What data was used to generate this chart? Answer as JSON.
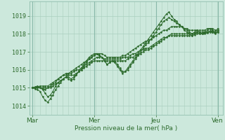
{
  "bg_color": "#cce8dc",
  "grid_v_color": "#aacfbf",
  "grid_h_color": "#aacfbf",
  "day_line_color": "#88b8a8",
  "line_color": "#2d6b2d",
  "marker_color": "#2d6b2d",
  "xlabel": "Pression niveau de la mer( hPa )",
  "xlabel_color": "#2d6b2d",
  "ylabel_color": "#2d6b2d",
  "tick_color": "#2d6b2d",
  "yticks": [
    1014,
    1015,
    1016,
    1017,
    1018,
    1019
  ],
  "ylim": [
    1013.5,
    1019.8
  ],
  "day_labels": [
    "Mar",
    "Mer",
    "Jeu",
    "Ven"
  ],
  "day_positions": [
    0,
    1,
    2,
    3
  ],
  "xlim": [
    -0.05,
    3.08
  ],
  "num_v_gridlines": 36,
  "lines": [
    {
      "x": [
        0.0,
        0.042,
        0.083,
        0.125,
        0.167,
        0.208,
        0.25,
        0.292,
        0.333,
        0.375,
        0.417,
        0.458,
        0.5,
        0.542,
        0.583,
        0.625,
        0.667,
        0.708,
        0.75,
        0.792,
        0.833,
        0.875,
        0.917,
        0.958,
        1.0,
        1.042,
        1.083,
        1.125,
        1.167,
        1.208,
        1.25,
        1.292,
        1.333,
        1.375,
        1.417,
        1.458,
        1.5,
        1.542,
        1.583,
        1.625,
        1.667,
        1.708,
        1.75,
        1.792,
        1.833,
        1.875,
        1.917,
        1.958,
        2.0,
        2.042,
        2.083,
        2.125,
        2.167,
        2.208,
        2.25,
        2.292,
        2.333,
        2.375,
        2.417,
        2.458,
        2.5,
        2.542,
        2.583,
        2.625,
        2.667,
        2.708,
        2.75,
        2.792,
        2.833,
        2.875,
        2.917,
        2.958,
        3.0
      ],
      "y": [
        1015.0,
        1015.05,
        1015.1,
        1015.0,
        1014.9,
        1014.7,
        1014.5,
        1014.6,
        1014.8,
        1015.1,
        1015.3,
        1015.4,
        1015.5,
        1015.6,
        1015.5,
        1015.4,
        1015.5,
        1015.7,
        1015.9,
        1016.1,
        1016.3,
        1016.5,
        1016.7,
        1016.8,
        1016.9,
        1016.9,
        1016.8,
        1016.7,
        1016.5,
        1016.3,
        1016.4,
        1016.5,
        1016.4,
        1016.2,
        1016.0,
        1015.8,
        1015.9,
        1016.1,
        1016.3,
        1016.5,
        1016.7,
        1016.9,
        1017.1,
        1017.3,
        1017.5,
        1017.7,
        1017.9,
        1018.1,
        1018.3,
        1018.5,
        1018.7,
        1018.9,
        1019.1,
        1019.2,
        1019.0,
        1018.8,
        1018.7,
        1018.5,
        1018.4,
        1018.3,
        1018.2,
        1018.1,
        1018.0,
        1018.1,
        1018.2,
        1018.1,
        1018.0,
        1018.1,
        1018.2,
        1018.3,
        1018.2,
        1018.1,
        1018.3
      ]
    },
    {
      "x": [
        0.0,
        0.042,
        0.083,
        0.125,
        0.167,
        0.208,
        0.25,
        0.292,
        0.333,
        0.375,
        0.417,
        0.458,
        0.5,
        0.542,
        0.583,
        0.625,
        0.667,
        0.708,
        0.75,
        0.792,
        0.833,
        0.875,
        0.917,
        0.958,
        1.0,
        1.042,
        1.083,
        1.125,
        1.167,
        1.208,
        1.25,
        1.292,
        1.333,
        1.375,
        1.417,
        1.458,
        1.5,
        1.542,
        1.583,
        1.625,
        1.667,
        1.708,
        1.75,
        1.792,
        1.833,
        1.875,
        1.917,
        1.958,
        2.0,
        2.042,
        2.083,
        2.125,
        2.167,
        2.208,
        2.25,
        2.292,
        2.333,
        2.375,
        2.417,
        2.458,
        2.5,
        2.542,
        2.583,
        2.625,
        2.667,
        2.708,
        2.75,
        2.792,
        2.833,
        2.875,
        2.917,
        2.958,
        3.0
      ],
      "y": [
        1015.0,
        1014.95,
        1014.9,
        1014.8,
        1014.5,
        1014.3,
        1014.2,
        1014.4,
        1014.6,
        1014.9,
        1015.1,
        1015.3,
        1015.5,
        1015.6,
        1015.6,
        1015.5,
        1015.6,
        1015.7,
        1015.9,
        1016.0,
        1016.2,
        1016.4,
        1016.6,
        1016.7,
        1016.8,
        1016.9,
        1016.8,
        1016.7,
        1016.5,
        1016.3,
        1016.4,
        1016.5,
        1016.5,
        1016.3,
        1016.1,
        1015.9,
        1015.9,
        1016.0,
        1016.2,
        1016.4,
        1016.6,
        1016.8,
        1017.0,
        1017.2,
        1017.4,
        1017.5,
        1017.7,
        1017.9,
        1018.1,
        1018.3,
        1018.5,
        1018.7,
        1018.8,
        1018.9,
        1018.8,
        1018.7,
        1018.6,
        1018.5,
        1018.4,
        1018.2,
        1018.1,
        1018.0,
        1017.9,
        1018.0,
        1018.1,
        1018.0,
        1018.0,
        1018.05,
        1018.1,
        1018.15,
        1018.1,
        1018.0,
        1018.1
      ]
    },
    {
      "x": [
        0.0,
        0.042,
        0.083,
        0.125,
        0.167,
        0.208,
        0.25,
        0.292,
        0.333,
        0.375,
        0.417,
        0.458,
        0.5,
        0.542,
        0.583,
        0.625,
        0.667,
        0.708,
        0.75,
        0.792,
        0.833,
        0.875,
        0.917,
        0.958,
        1.0,
        1.042,
        1.083,
        1.125,
        1.167,
        1.208,
        1.25,
        1.292,
        1.333,
        1.375,
        1.417,
        1.458,
        1.5,
        1.542,
        1.583,
        1.625,
        1.667,
        1.708,
        1.75,
        1.792,
        1.833,
        1.875,
        1.917,
        1.958,
        2.0,
        2.042,
        2.083,
        2.125,
        2.167,
        2.208,
        2.25,
        2.292,
        2.333,
        2.375,
        2.417,
        2.458,
        2.5,
        2.542,
        2.583,
        2.625,
        2.667,
        2.708,
        2.75,
        2.792,
        2.833,
        2.875,
        2.917,
        2.958,
        3.0
      ],
      "y": [
        1015.0,
        1015.0,
        1015.0,
        1015.0,
        1015.0,
        1015.0,
        1015.0,
        1015.0,
        1015.1,
        1015.2,
        1015.3,
        1015.4,
        1015.5,
        1015.6,
        1015.7,
        1015.7,
        1015.7,
        1015.8,
        1015.9,
        1016.0,
        1016.1,
        1016.2,
        1016.3,
        1016.4,
        1016.5,
        1016.5,
        1016.5,
        1016.5,
        1016.5,
        1016.5,
        1016.5,
        1016.5,
        1016.5,
        1016.5,
        1016.5,
        1016.5,
        1016.5,
        1016.6,
        1016.7,
        1016.7,
        1016.8,
        1016.8,
        1016.9,
        1017.0,
        1017.1,
        1017.1,
        1017.2,
        1017.3,
        1017.4,
        1017.5,
        1017.6,
        1017.7,
        1017.8,
        1017.9,
        1017.9,
        1017.9,
        1017.9,
        1017.9,
        1017.9,
        1017.9,
        1017.9,
        1017.9,
        1017.9,
        1017.95,
        1018.0,
        1018.0,
        1018.0,
        1018.0,
        1018.05,
        1018.1,
        1018.1,
        1018.05,
        1018.1
      ]
    },
    {
      "x": [
        0.0,
        0.042,
        0.083,
        0.125,
        0.167,
        0.208,
        0.25,
        0.292,
        0.333,
        0.375,
        0.417,
        0.458,
        0.5,
        0.542,
        0.583,
        0.625,
        0.667,
        0.708,
        0.75,
        0.792,
        0.833,
        0.875,
        0.917,
        0.958,
        1.0,
        1.042,
        1.083,
        1.125,
        1.167,
        1.208,
        1.25,
        1.292,
        1.333,
        1.375,
        1.417,
        1.458,
        1.5,
        1.542,
        1.583,
        1.625,
        1.667,
        1.708,
        1.75,
        1.792,
        1.833,
        1.875,
        1.917,
        1.958,
        2.0,
        2.042,
        2.083,
        2.125,
        2.167,
        2.208,
        2.25,
        2.292,
        2.333,
        2.375,
        2.417,
        2.458,
        2.5,
        2.542,
        2.583,
        2.625,
        2.667,
        2.708,
        2.75,
        2.792,
        2.833,
        2.875,
        2.917,
        2.958,
        3.0
      ],
      "y": [
        1015.0,
        1015.0,
        1015.05,
        1015.1,
        1015.1,
        1015.1,
        1015.1,
        1015.2,
        1015.3,
        1015.4,
        1015.5,
        1015.6,
        1015.7,
        1015.7,
        1015.8,
        1015.8,
        1015.9,
        1016.0,
        1016.0,
        1016.1,
        1016.2,
        1016.3,
        1016.4,
        1016.5,
        1016.6,
        1016.7,
        1016.7,
        1016.7,
        1016.6,
        1016.6,
        1016.6,
        1016.6,
        1016.6,
        1016.6,
        1016.6,
        1016.7,
        1016.7,
        1016.7,
        1016.8,
        1016.9,
        1016.9,
        1017.0,
        1017.1,
        1017.1,
        1017.2,
        1017.2,
        1017.3,
        1017.4,
        1017.5,
        1017.6,
        1017.7,
        1017.8,
        1017.8,
        1017.9,
        1018.0,
        1018.0,
        1018.0,
        1018.0,
        1018.0,
        1018.0,
        1018.0,
        1018.0,
        1018.0,
        1018.05,
        1018.1,
        1018.1,
        1018.1,
        1018.1,
        1018.1,
        1018.15,
        1018.15,
        1018.1,
        1018.15
      ]
    },
    {
      "x": [
        0.0,
        0.042,
        0.083,
        0.125,
        0.167,
        0.208,
        0.25,
        0.292,
        0.333,
        0.375,
        0.417,
        0.458,
        0.5,
        0.542,
        0.583,
        0.625,
        0.667,
        0.708,
        0.75,
        0.792,
        0.833,
        0.875,
        0.917,
        0.958,
        1.0,
        1.042,
        1.083,
        1.125,
        1.167,
        1.208,
        1.25,
        1.292,
        1.333,
        1.375,
        1.417,
        1.458,
        1.5,
        1.542,
        1.583,
        1.625,
        1.667,
        1.708,
        1.75,
        1.792,
        1.833,
        1.875,
        1.917,
        1.958,
        2.0,
        2.042,
        2.083,
        2.125,
        2.167,
        2.208,
        2.25,
        2.292,
        2.333,
        2.375,
        2.417,
        2.458,
        2.5,
        2.542,
        2.583,
        2.625,
        2.667,
        2.708,
        2.75,
        2.792,
        2.833,
        2.875,
        2.917,
        2.958,
        3.0
      ],
      "y": [
        1015.0,
        1015.0,
        1015.0,
        1015.0,
        1014.95,
        1014.9,
        1015.0,
        1015.1,
        1015.2,
        1015.3,
        1015.5,
        1015.6,
        1015.7,
        1015.8,
        1015.8,
        1015.9,
        1016.0,
        1016.1,
        1016.2,
        1016.3,
        1016.4,
        1016.5,
        1016.6,
        1016.7,
        1016.8,
        1016.9,
        1016.9,
        1016.9,
        1016.8,
        1016.7,
        1016.7,
        1016.7,
        1016.7,
        1016.7,
        1016.7,
        1016.8,
        1016.8,
        1016.9,
        1017.0,
        1017.1,
        1017.2,
        1017.3,
        1017.4,
        1017.5,
        1017.6,
        1017.6,
        1017.7,
        1017.8,
        1017.9,
        1018.0,
        1018.1,
        1018.2,
        1018.2,
        1018.3,
        1018.4,
        1018.4,
        1018.4,
        1018.4,
        1018.4,
        1018.3,
        1018.3,
        1018.2,
        1018.2,
        1018.2,
        1018.2,
        1018.2,
        1018.2,
        1018.2,
        1018.3,
        1018.3,
        1018.3,
        1018.2,
        1018.2
      ]
    }
  ]
}
